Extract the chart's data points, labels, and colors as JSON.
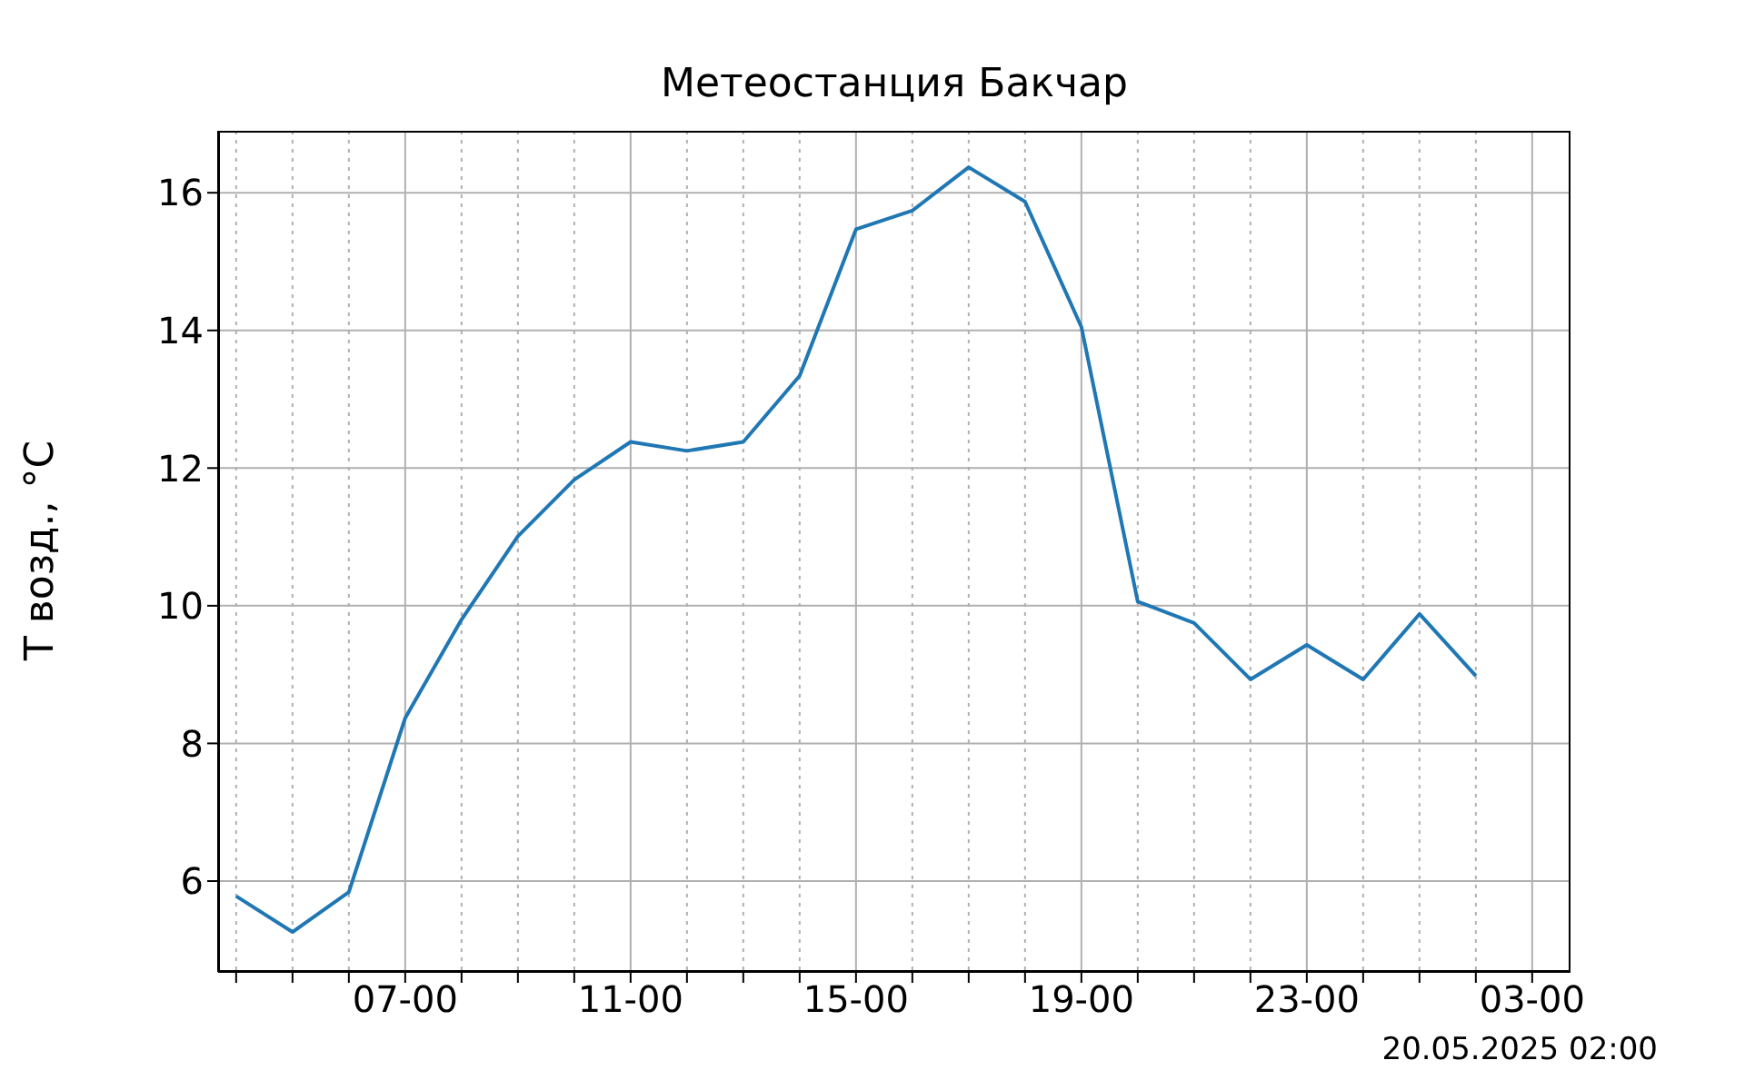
{
  "chart_data": {
    "type": "line",
    "title": "Метеостанция Бакчар",
    "ylabel": "Т возд., °C",
    "annotations": [
      "20.05.2025 02:00"
    ],
    "categories": [
      null,
      null,
      null,
      "07-00",
      null,
      null,
      null,
      "11-00",
      null,
      null,
      null,
      "15-00",
      null,
      null,
      null,
      "19-00",
      null,
      null,
      null,
      "23-00",
      null,
      null,
      null,
      "03-00"
    ],
    "series": [
      {
        "color": "#1f77b4",
        "values": [
          5.78,
          5.26,
          5.84,
          8.37,
          9.8,
          11.01,
          11.83,
          12.38,
          12.25,
          12.38,
          13.34,
          15.47,
          15.74,
          16.37,
          15.87,
          14.05,
          10.06,
          9.75,
          8.93,
          9.43,
          8.93,
          9.88,
          8.98,
          null
        ]
      }
    ],
    "ylim": [
      4.68,
      16.9
    ],
    "yticks": [
      6,
      8,
      10,
      12,
      14,
      16
    ],
    "grid": true,
    "marker": "none",
    "line_style": "solid"
  }
}
